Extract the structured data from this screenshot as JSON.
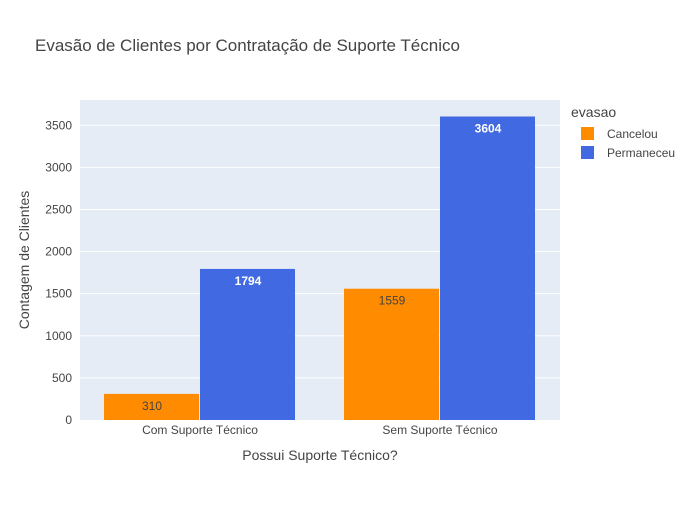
{
  "chart_data": {
    "type": "bar",
    "title": "Evasão de Clientes por Contratação de Suporte Técnico",
    "xlabel": "Possui Suporte Técnico?",
    "ylabel": "Contagem de Clientes",
    "categories": [
      "Com Suporte Técnico",
      "Sem Suporte Técnico"
    ],
    "series": [
      {
        "name": "Cancelou",
        "values": [
          310,
          1559
        ],
        "color": "#FF8C00"
      },
      {
        "name": "Permaneceu",
        "values": [
          1794,
          3604
        ],
        "color": "#4169E1"
      }
    ],
    "ylim": [
      0,
      3800
    ],
    "yticks": [
      0,
      500,
      1000,
      1500,
      2000,
      2500,
      3000,
      3500
    ],
    "grid": true,
    "legend": {
      "title": "evasao",
      "placement": "right"
    },
    "colors": {
      "plot_bg": "#E5ECF6",
      "grid": "#ffffff",
      "text": "#444444",
      "title": "#444444"
    }
  }
}
